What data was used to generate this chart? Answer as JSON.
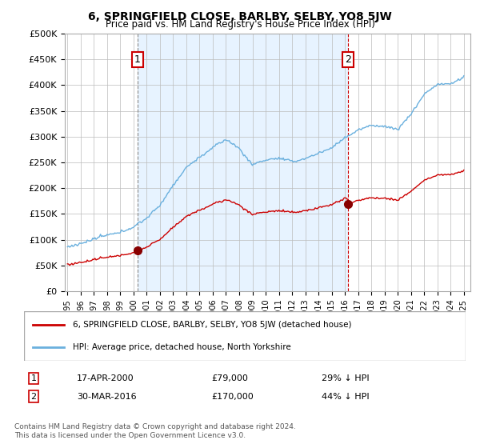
{
  "title": "6, SPRINGFIELD CLOSE, BARLBY, SELBY, YO8 5JW",
  "subtitle": "Price paid vs. HM Land Registry's House Price Index (HPI)",
  "legend_line1": "6, SPRINGFIELD CLOSE, BARLBY, SELBY, YO8 5JW (detached house)",
  "legend_line2": "HPI: Average price, detached house, North Yorkshire",
  "footnote": "Contains HM Land Registry data © Crown copyright and database right 2024.\nThis data is licensed under the Open Government Licence v3.0.",
  "sale1_date": "17-APR-2000",
  "sale1_price": "£79,000",
  "sale1_hpi": "29% ↓ HPI",
  "sale1_x": 2000.29,
  "sale1_y": 79000,
  "sale2_date": "30-MAR-2016",
  "sale2_price": "£170,000",
  "sale2_hpi": "44% ↓ HPI",
  "sale2_x": 2016.24,
  "sale2_y": 170000,
  "hpi_color": "#6ab0de",
  "sale_color": "#cc0000",
  "marker_color": "#880000",
  "background_color": "#ddeeff",
  "shade_color": "#ddeeff",
  "ylim": [
    0,
    500000
  ],
  "xlim_start": 1994.8,
  "xlim_end": 2025.5,
  "yticks": [
    0,
    50000,
    100000,
    150000,
    200000,
    250000,
    300000,
    350000,
    400000,
    450000,
    500000
  ],
  "ytick_labels": [
    "£0",
    "£50K",
    "£100K",
    "£150K",
    "£200K",
    "£250K",
    "£300K",
    "£350K",
    "£400K",
    "£450K",
    "£500K"
  ],
  "xticks": [
    1995,
    1996,
    1997,
    1998,
    1999,
    2000,
    2001,
    2002,
    2003,
    2004,
    2005,
    2006,
    2007,
    2008,
    2009,
    2010,
    2011,
    2012,
    2013,
    2014,
    2015,
    2016,
    2017,
    2018,
    2019,
    2020,
    2021,
    2022,
    2023,
    2024,
    2025
  ]
}
